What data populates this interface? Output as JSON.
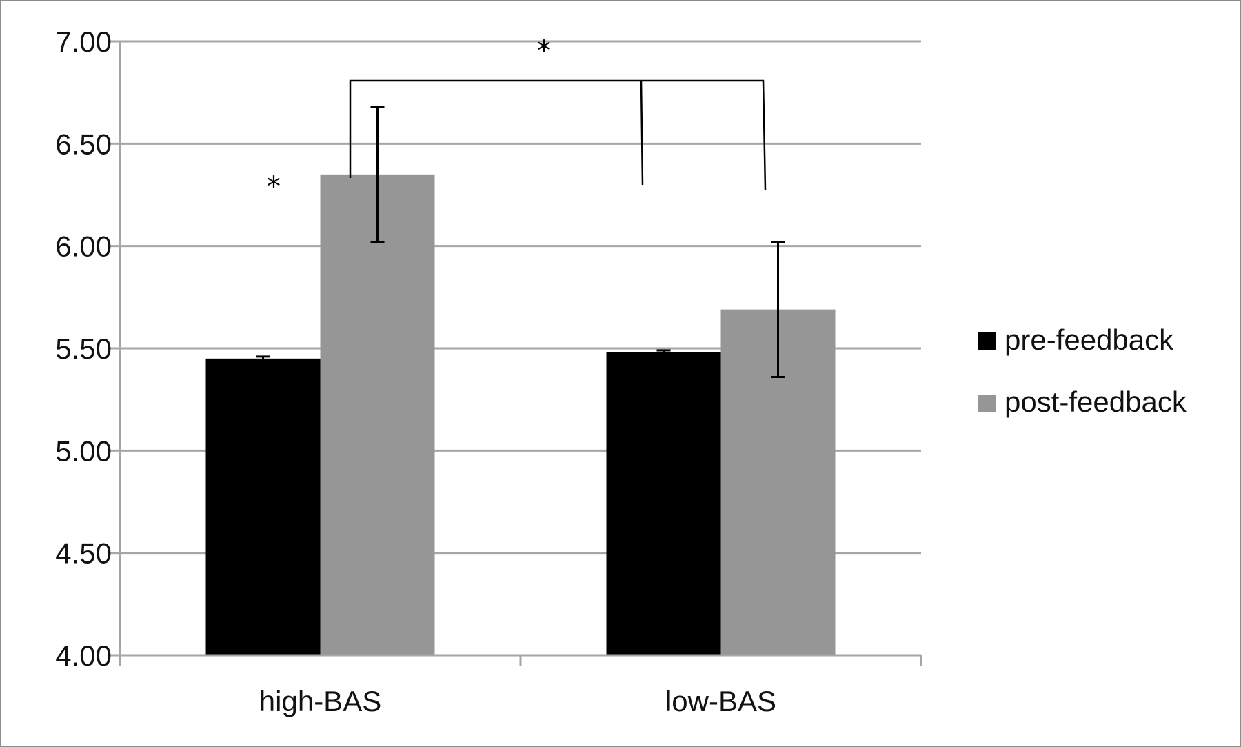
{
  "chart_data": {
    "type": "bar",
    "categories": [
      "high-BAS",
      "low-BAS"
    ],
    "series": [
      {
        "name": "pre-feedback",
        "values": [
          5.45,
          5.48
        ],
        "errors": [
          0.01,
          0.01
        ],
        "color": "#000000"
      },
      {
        "name": "post-feedback",
        "values": [
          6.35,
          5.69
        ],
        "errors": [
          0.33,
          0.33
        ],
        "color": "#969696"
      }
    ],
    "ylim": [
      4.0,
      7.0
    ],
    "yticks": [
      "4.00",
      "4.50",
      "5.00",
      "5.50",
      "6.00",
      "6.50",
      "7.00"
    ],
    "ytick_values": [
      4.0,
      4.5,
      5.0,
      5.5,
      6.0,
      6.5,
      7.0
    ],
    "grid": true,
    "legend_position": "right",
    "significance": {
      "within_group_marker": "*",
      "between_group_marker": "*"
    },
    "colors": {
      "grid": "#a6a6a6",
      "frame": "#8c8c8c"
    }
  }
}
